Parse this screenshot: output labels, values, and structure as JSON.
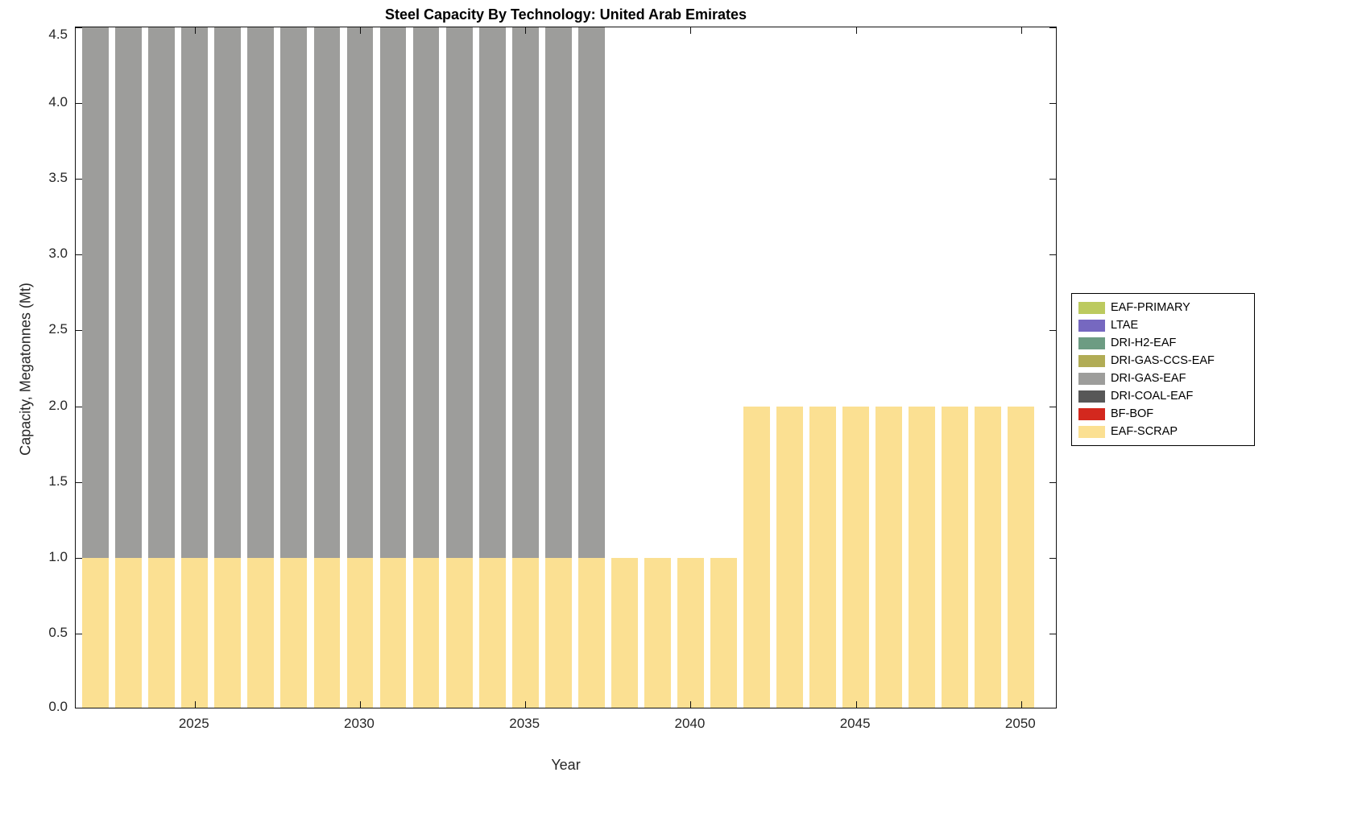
{
  "chart_data": {
    "type": "bar",
    "stacked": true,
    "title": "Steel Capacity By Technology: United Arab Emirates",
    "xlabel": "Year",
    "ylabel": "Capacity, Megatonnes (Mt)",
    "x": [
      2022,
      2023,
      2024,
      2025,
      2026,
      2027,
      2028,
      2029,
      2030,
      2031,
      2032,
      2033,
      2034,
      2035,
      2036,
      2037,
      2038,
      2039,
      2040,
      2041,
      2042,
      2043,
      2044,
      2045,
      2046,
      2047,
      2048,
      2049,
      2050
    ],
    "series": [
      {
        "name": "EAF-SCRAP",
        "color": "#FBE092",
        "values": [
          1.0,
          1.0,
          1.0,
          1.0,
          1.0,
          1.0,
          1.0,
          1.0,
          1.0,
          1.0,
          1.0,
          1.0,
          1.0,
          1.0,
          1.0,
          1.0,
          1.0,
          1.0,
          1.0,
          1.0,
          2.0,
          2.0,
          2.0,
          2.0,
          2.0,
          2.0,
          2.0,
          2.0,
          2.0
        ]
      },
      {
        "name": "DRI-GAS-EAF",
        "color": "#9D9D9B",
        "values": [
          3.5,
          3.5,
          3.5,
          3.5,
          3.5,
          3.5,
          3.5,
          3.5,
          3.5,
          3.5,
          3.5,
          3.5,
          3.5,
          3.5,
          3.5,
          3.5,
          0,
          0,
          0,
          0,
          0,
          0,
          0,
          0,
          0,
          0,
          0,
          0,
          0
        ]
      }
    ],
    "xlim": [
      2021.4,
      2051.1
    ],
    "ylim": [
      0,
      4.5
    ],
    "xticks": [
      2025,
      2030,
      2035,
      2040,
      2045,
      2050
    ],
    "yticks": [
      "0.0",
      "0.5",
      "1.0",
      "1.5",
      "2.0",
      "2.5",
      "3.0",
      "3.5",
      "4.0",
      "4.5"
    ],
    "bar_rel_width": 0.8,
    "note": "DRI-GAS-EAF segments reach the top of the axes; visible portion spans 1.0 to 4.5 Mt (clipped at axis maximum)",
    "legend_position": "right-outside",
    "grid": false
  },
  "legend": {
    "entries": [
      {
        "label": "EAF-PRIMARY",
        "color": "#BCCA5F"
      },
      {
        "label": "LTAE",
        "color": "#7668C0"
      },
      {
        "label": "DRI-H2-EAF",
        "color": "#6D9C83"
      },
      {
        "label": "DRI-GAS-CCS-EAF",
        "color": "#B1AC55"
      },
      {
        "label": "DRI-GAS-EAF",
        "color": "#9D9D9B"
      },
      {
        "label": "DRI-COAL-EAF",
        "color": "#575757"
      },
      {
        "label": "BF-BOF",
        "color": "#D3281E"
      },
      {
        "label": "EAF-SCRAP",
        "color": "#FBE092"
      }
    ]
  }
}
